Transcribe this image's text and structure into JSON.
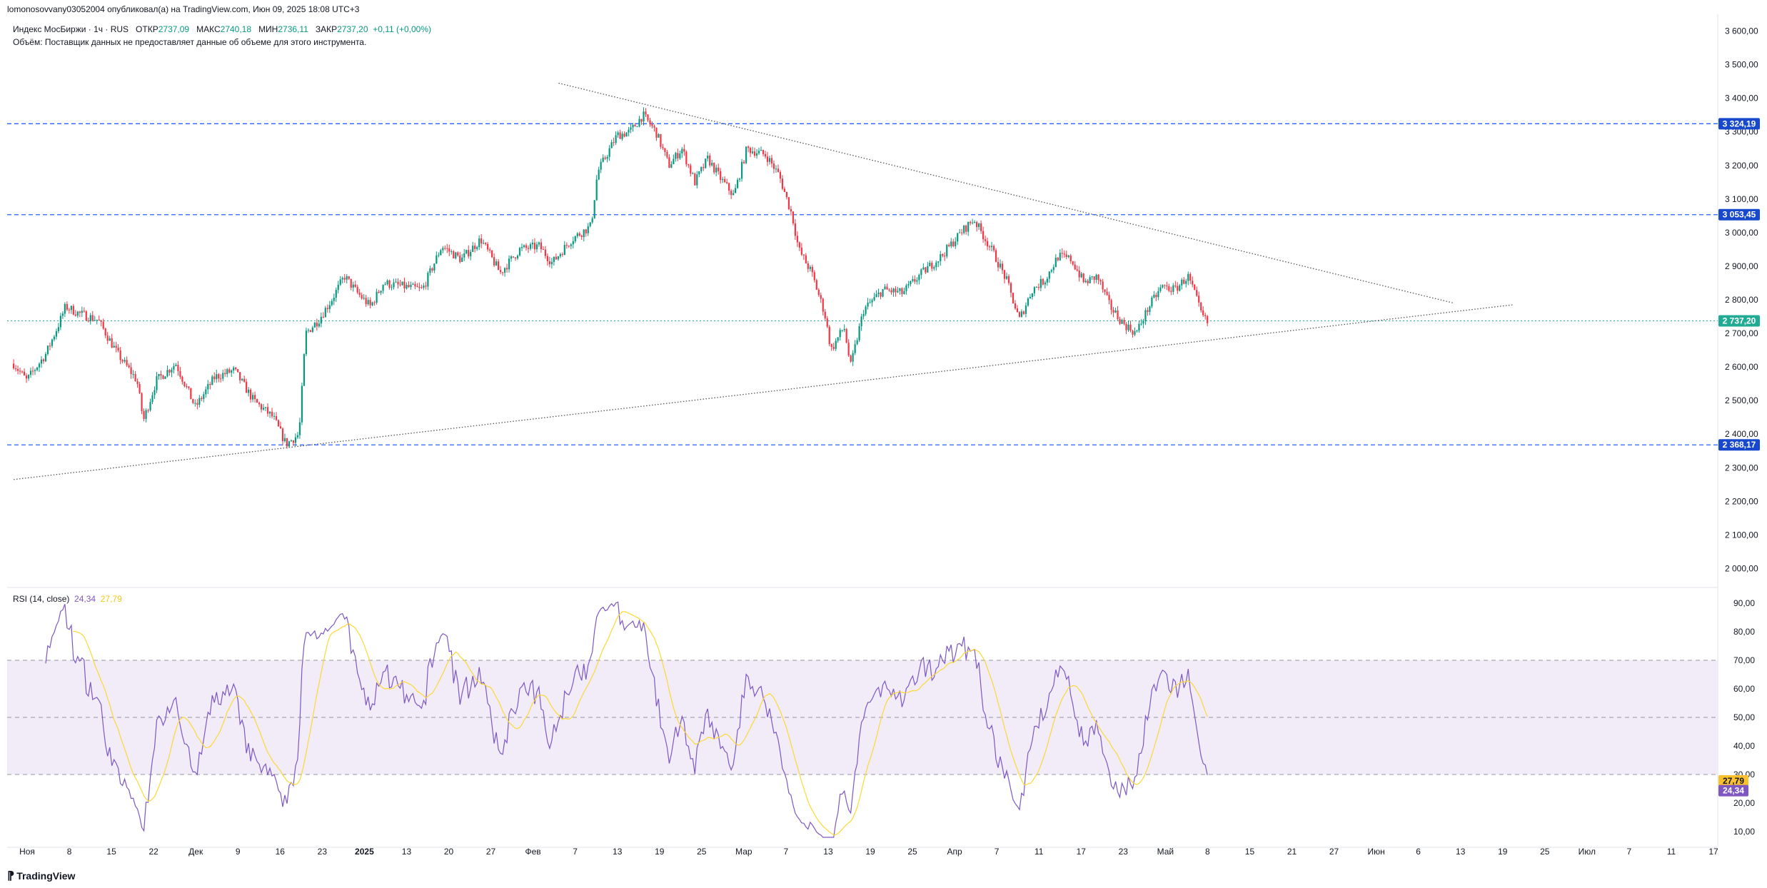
{
  "publisher": "lomonosovvany03052004 опубликовал(а) на TradingView.com, Июн 09, 2025 18:08 UTC+3",
  "legend": {
    "symbol": "Индекс МосБиржи · 1ч · RUS",
    "open_label": "ОТКР",
    "open_value": "2737,09",
    "high_label": "МАКС",
    "high_value": "2740,18",
    "low_label": "МИН",
    "low_value": "2736,11",
    "close_label": "ЗАКР",
    "close_value": "2737,20",
    "change": "+0,11 (+0,00%)",
    "volume_note": "Объём: Поставщик данных не предоставляет данные об объеме для этого инструмента."
  },
  "rsi_legend": {
    "title": "RSI (14, close)",
    "rsi_value": "24,34",
    "ma_value": "27,79"
  },
  "brand": "TradingView",
  "colors": {
    "up": "#089981",
    "down": "#f23645",
    "level_line": "#2962ff",
    "price_tag": "#1848cc",
    "current_tag": "#22ab94",
    "rsi": "#7e57c2",
    "rsi_ma": "#fdd835",
    "rsi_band": "#ede7f6",
    "trendline": "#555555"
  },
  "chart_data": [
    {
      "type": "candlestick",
      "timeframe": "1h",
      "ylim": [
        1950,
        3650
      ],
      "y_ticks": [
        2000,
        2100,
        2200,
        2300,
        2400,
        2500,
        2600,
        2700,
        2800,
        2900,
        3000,
        3100,
        3200,
        3300,
        3400,
        3500,
        3600
      ],
      "y_tick_labels": [
        "2 000,00",
        "2 100,00",
        "2 200,00",
        "2 300,00",
        "2 400,00",
        "2 500,00",
        "2 600,00",
        "2 700,00",
        "2 800,00",
        "2 900,00",
        "3 000,00",
        "3 100,00",
        "3 200,00",
        "3 300,00",
        "3 400,00",
        "3 500,00",
        "3 600,00"
      ],
      "x_labels": [
        "Ноя",
        "8",
        "15",
        "22",
        "Дек",
        "9",
        "16",
        "23",
        "2025",
        "13",
        "20",
        "27",
        "Фев",
        "7",
        "13",
        "19",
        "25",
        "Мар",
        "7",
        "13",
        "19",
        "25",
        "Апр",
        "7",
        "11",
        "17",
        "23",
        "Май",
        "8",
        "15",
        "21",
        "27",
        "Июн",
        "6",
        "13",
        "19",
        "25",
        "Июл",
        "7",
        "11",
        "17"
      ],
      "x_label_bold": [
        "2025"
      ],
      "price_path": [
        [
          "2024-10-31",
          2610
        ],
        [
          "2024-11-02",
          2560
        ],
        [
          "2024-11-05",
          2640
        ],
        [
          "2024-11-07",
          2730
        ],
        [
          "2024-11-08",
          2780
        ],
        [
          "2024-11-10",
          2760
        ],
        [
          "2024-11-13",
          2740
        ],
        [
          "2024-11-16",
          2640
        ],
        [
          "2024-11-19",
          2560
        ],
        [
          "2024-11-20",
          2440
        ],
        [
          "2024-11-22",
          2560
        ],
        [
          "2024-11-25",
          2610
        ],
        [
          "2024-11-28",
          2480
        ],
        [
          "2024-12-01",
          2570
        ],
        [
          "2024-12-04",
          2590
        ],
        [
          "2024-12-07",
          2500
        ],
        [
          "2024-12-10",
          2450
        ],
        [
          "2024-12-12",
          2370
        ],
        [
          "2024-12-14",
          2400
        ],
        [
          "2024-12-15",
          2700
        ],
        [
          "2024-12-17",
          2740
        ],
        [
          "2024-12-19",
          2800
        ],
        [
          "2024-12-21",
          2870
        ],
        [
          "2024-12-23",
          2820
        ],
        [
          "2024-12-25",
          2780
        ],
        [
          "2024-12-27",
          2850
        ],
        [
          "2024-12-30",
          2840
        ],
        [
          "2025-01-02",
          2830
        ],
        [
          "2025-01-05",
          2960
        ],
        [
          "2025-01-08",
          2920
        ],
        [
          "2025-01-11",
          2980
        ],
        [
          "2025-01-14",
          2880
        ],
        [
          "2025-01-17",
          2950
        ],
        [
          "2025-01-20",
          2960
        ],
        [
          "2025-01-22",
          2910
        ],
        [
          "2025-01-25",
          2980
        ],
        [
          "2025-01-28",
          3020
        ],
        [
          "2025-01-29",
          3180
        ],
        [
          "2025-02-01",
          3290
        ],
        [
          "2025-02-03",
          3300
        ],
        [
          "2025-02-05",
          3350
        ],
        [
          "2025-02-07",
          3300
        ],
        [
          "2025-02-09",
          3200
        ],
        [
          "2025-02-11",
          3250
        ],
        [
          "2025-02-13",
          3150
        ],
        [
          "2025-02-15",
          3220
        ],
        [
          "2025-02-17",
          3160
        ],
        [
          "2025-02-19",
          3110
        ],
        [
          "2025-02-21",
          3250
        ],
        [
          "2025-02-24",
          3230
        ],
        [
          "2025-02-26",
          3170
        ],
        [
          "2025-02-28",
          3050
        ],
        [
          "2025-03-01",
          2950
        ],
        [
          "2025-03-03",
          2880
        ],
        [
          "2025-03-05",
          2760
        ],
        [
          "2025-03-06",
          2650
        ],
        [
          "2025-03-08",
          2720
        ],
        [
          "2025-03-09",
          2600
        ],
        [
          "2025-03-11",
          2770
        ],
        [
          "2025-03-14",
          2830
        ],
        [
          "2025-03-17",
          2820
        ],
        [
          "2025-03-20",
          2880
        ],
        [
          "2025-03-23",
          2930
        ],
        [
          "2025-03-26",
          3000
        ],
        [
          "2025-03-28",
          3040
        ],
        [
          "2025-03-31",
          2940
        ],
        [
          "2025-04-02",
          2860
        ],
        [
          "2025-04-04",
          2740
        ],
        [
          "2025-04-06",
          2830
        ],
        [
          "2025-04-08",
          2860
        ],
        [
          "2025-04-10",
          2930
        ],
        [
          "2025-04-12",
          2920
        ],
        [
          "2025-04-14",
          2850
        ],
        [
          "2025-04-16",
          2870
        ],
        [
          "2025-04-18",
          2780
        ],
        [
          "2025-04-20",
          2730
        ],
        [
          "2025-04-22",
          2700
        ],
        [
          "2025-04-24",
          2780
        ],
        [
          "2025-04-26",
          2840
        ],
        [
          "2025-04-28",
          2830
        ],
        [
          "2025-04-30",
          2870
        ],
        [
          "2025-05-01",
          2820
        ],
        [
          "2025-05-02",
          2760
        ],
        [
          "2025-05-03",
          2730
        ]
      ],
      "horizontal_levels": [
        {
          "value": 3324.19,
          "label": "3 324,19"
        },
        {
          "value": 3053.45,
          "label": "3 053,45"
        },
        {
          "value": 2368.17,
          "label": "2 368,17"
        }
      ],
      "current_price": {
        "value": 2737.2,
        "label": "2 737,20"
      },
      "trendlines": [
        {
          "from": [
            "2024-10-31",
            2265
          ],
          "to": [
            "2025-06-19",
            2785
          ]
        },
        {
          "from": [
            "2025-01-23",
            3445
          ],
          "to": [
            "2025-06-10",
            2790
          ]
        }
      ]
    },
    {
      "type": "line",
      "title": "RSI (14, close)",
      "ylim": [
        5,
        95
      ],
      "y_ticks": [
        10,
        20,
        30,
        40,
        50,
        60,
        70,
        80,
        90
      ],
      "y_tick_labels": [
        "10,00",
        "20,00",
        "30,00",
        "40,00",
        "50,00",
        "60,00",
        "70,00",
        "80,00",
        "90,00"
      ],
      "band": [
        30,
        70
      ],
      "midline": 50,
      "series": [
        {
          "name": "RSI",
          "last": 24.34,
          "last_label": "24,34"
        },
        {
          "name": "RSI MA",
          "last": 27.79,
          "last_label": "27,79"
        }
      ]
    }
  ]
}
